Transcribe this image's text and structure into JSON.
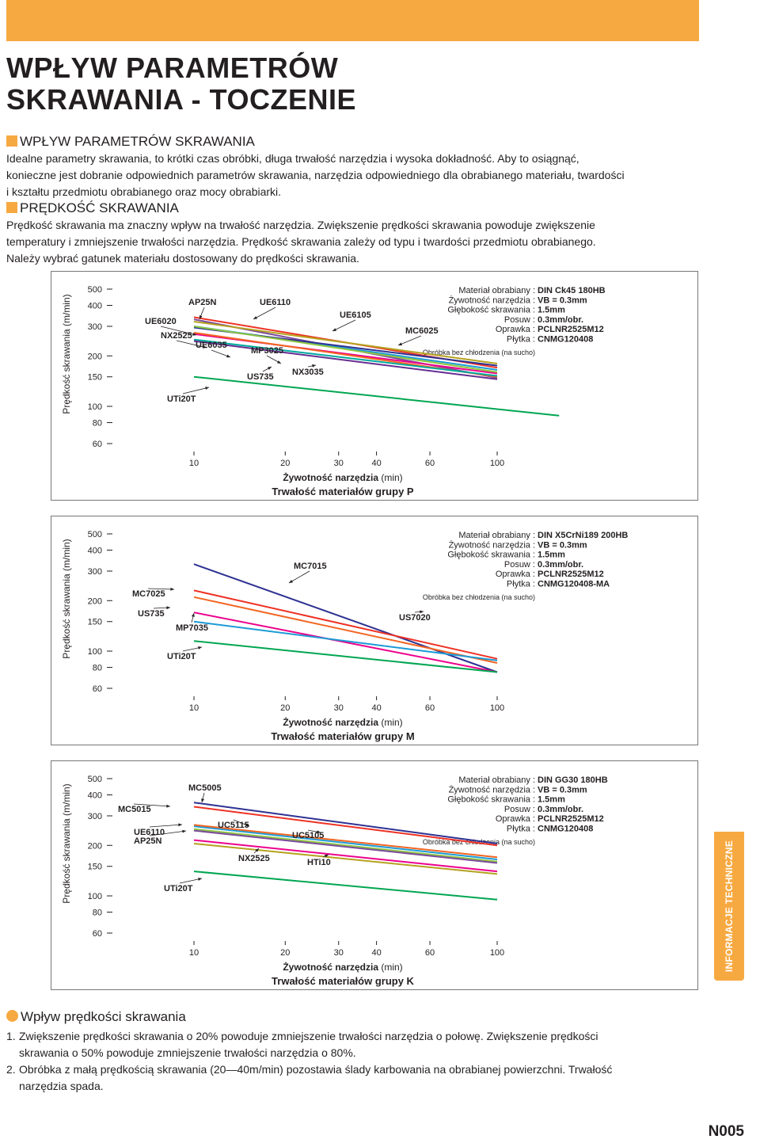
{
  "title_lines": [
    "WPŁYW PARAMETRÓW",
    "SKRAWANIA - TOCZENIE"
  ],
  "section1": {
    "heading": "WPŁYW PARAMETRÓW SKRAWANIA",
    "lines": [
      "Idealne parametry skrawania, to krótki czas obróbki, długa trwałość narzędzia i wysoka dokładność. Aby to osiągnąć,",
      "konieczne jest dobranie odpowiednich parametrów skrawania, narzędzia odpowiedniego dla obrabianego materiału, twardości",
      "i kształtu przedmiotu obrabianego oraz mocy obrabiarki."
    ]
  },
  "section2": {
    "heading": "PRĘDKOŚĆ SKRAWANIA",
    "lines": [
      "Prędkość skrawania ma znaczny wpływ na trwałość narzędzia. Zwiększenie prędkości skrawania powoduje zwiększenie",
      "temperatury i zmniejszenie trwałości narzędzia. Prędkość skrawania zależy od typu i twardości przedmiotu obrabianego.",
      "Należy wybrać gatunek materiału dostosowany do prędkości skrawania."
    ]
  },
  "chart_data": [
    {
      "type": "line",
      "title": "Trwałość materiałów grupy P",
      "xlabel_bold": "Żywotność narzędzia",
      "xlabel_unit": "(min)",
      "ylabel": "Prędkość skrawania (m/min)",
      "xscale": "log",
      "yscale": "log",
      "xticks": [
        10,
        20,
        30,
        40,
        60,
        100
      ],
      "yticks": [
        500,
        400,
        300,
        200,
        150,
        100,
        80,
        60
      ],
      "xlim": [
        10,
        100
      ],
      "ylim": [
        60,
        500
      ],
      "info": {
        "labels": [
          "Materiał obrabiany :",
          "Żywotność narzędzia :",
          "Głębokość skrawania :",
          "Posuw :",
          "Oprawka :",
          "Płytka :"
        ],
        "values": [
          "DIN Ck45   180HB",
          "VB = 0.3mm",
          "1.5mm",
          "0.3mm/obr.",
          "PCLNR2525M12",
          "CNMG120408"
        ],
        "note": "Obróbka bez chłodzenia (na sucho)"
      },
      "series": [
        {
          "name": "UE6020",
          "color": "#7b4b9c",
          "points": [
            [
              10,
              330
            ],
            [
              100,
              148
            ]
          ]
        },
        {
          "name": "AP25N",
          "color": "#ee3124",
          "points": [
            [
              10,
              340
            ],
            [
              100,
              170
            ]
          ]
        },
        {
          "name": "UE6110",
          "color": "#1c9ad6",
          "points": [
            [
              10,
              300
            ],
            [
              100,
              165
            ]
          ]
        },
        {
          "name": "UE6105",
          "color": "#2e3192",
          "points": [
            [
              10,
              295
            ],
            [
              100,
              175
            ]
          ]
        },
        {
          "name": "MC6025",
          "color": "#b5a11f",
          "points": [
            [
              10,
              320
            ],
            [
              100,
              180
            ]
          ]
        },
        {
          "name": "NX2525",
          "color": "#ec008c",
          "points": [
            [
              10,
              270
            ],
            [
              100,
              157
            ]
          ]
        },
        {
          "name": "UE6035",
          "color": "#8dc63f",
          "points": [
            [
              10,
              300
            ],
            [
              100,
              160
            ]
          ]
        },
        {
          "name": "MP3025",
          "color": "#f26522",
          "points": [
            [
              10,
              275
            ],
            [
              100,
              150
            ]
          ]
        },
        {
          "name": "US735",
          "color": "#00a99d",
          "points": [
            [
              10,
              250
            ],
            [
              100,
              152
            ]
          ]
        },
        {
          "name": "NX3035",
          "color": "#662d91",
          "points": [
            [
              10,
              245
            ],
            [
              100,
              145
            ]
          ]
        },
        {
          "name": "UTi20T",
          "color": "#00a651",
          "points": [
            [
              10,
              150
            ],
            [
              160,
              88
            ]
          ]
        }
      ]
    },
    {
      "type": "line",
      "title": "Trwałość materiałów grupy M",
      "xlabel_bold": "Żywotność narzędzia",
      "xlabel_unit": "(min)",
      "ylabel": "Prędkość skrawania (m/min)",
      "xscale": "log",
      "yscale": "log",
      "xticks": [
        10,
        20,
        30,
        40,
        60,
        100
      ],
      "yticks": [
        500,
        400,
        300,
        200,
        150,
        100,
        80,
        60
      ],
      "xlim": [
        10,
        100
      ],
      "ylim": [
        60,
        500
      ],
      "info": {
        "labels": [
          "Materiał obrabiany :",
          "Żywotność narzędzia :",
          "Głębokość skrawania :",
          "Posuw :",
          "Oprawka :",
          "Płytka :"
        ],
        "values": [
          "DIN X5CrNi189   200HB",
          "VB = 0.3mm",
          "1.5mm",
          "0.3mm/obr.",
          "PCLNR2525M12",
          "CNMG120408-MA"
        ],
        "note": "Obróbka bez chłodzenia (na sucho)"
      },
      "series": [
        {
          "name": "MC7015",
          "color": "#2e3192",
          "points": [
            [
              10,
              330
            ],
            [
              100,
              75
            ]
          ]
        },
        {
          "name": "MC7025",
          "color": "#ee3124",
          "points": [
            [
              10,
              230
            ],
            [
              100,
              90
            ]
          ]
        },
        {
          "name": "US7020",
          "color": "#f26522",
          "points": [
            [
              10,
              210
            ],
            [
              100,
              85
            ]
          ]
        },
        {
          "name": "US735",
          "color": "#ec008c",
          "points": [
            [
              10,
              170
            ],
            [
              100,
              75
            ]
          ]
        },
        {
          "name": "MP7035",
          "color": "#1c9ad6",
          "points": [
            [
              10,
              150
            ],
            [
              100,
              88
            ]
          ]
        },
        {
          "name": "UTi20T",
          "color": "#00a651",
          "points": [
            [
              10,
              115
            ],
            [
              100,
              75
            ]
          ]
        }
      ]
    },
    {
      "type": "line",
      "title": "Trwałość materiałów grupy K",
      "xlabel_bold": "Żywotność narzędzia",
      "xlabel_unit": "(min)",
      "ylabel": "Prędkość skrawania (m/min)",
      "xscale": "log",
      "yscale": "log",
      "xticks": [
        10,
        20,
        30,
        40,
        60,
        100
      ],
      "yticks": [
        500,
        400,
        300,
        200,
        150,
        100,
        80,
        60
      ],
      "xlim": [
        10,
        100
      ],
      "ylim": [
        60,
        500
      ],
      "info": {
        "labels": [
          "Materiał obrabiany :",
          "Żywotność narzędzia :",
          "Głębokość skrawania :",
          "Posuw :",
          "Oprawka :",
          "Płytka :"
        ],
        "values": [
          "DIN GG30   180HB",
          "VB = 0.3mm",
          "1.5mm",
          "0.3mm/obr.",
          "PCLNR2525M12",
          "CNMG120408"
        ],
        "note": "Obróbka bez chłodzenia (na sucho)"
      },
      "series": [
        {
          "name": "MC5005",
          "color": "#2e3192",
          "points": [
            [
              10,
              360
            ],
            [
              100,
              205
            ]
          ]
        },
        {
          "name": "MC5015",
          "color": "#ee3124",
          "points": [
            [
              10,
              340
            ],
            [
              100,
              200
            ]
          ]
        },
        {
          "name": "UE6110",
          "color": "#8dc63f",
          "points": [
            [
              10,
              250
            ],
            [
              100,
              160
            ]
          ]
        },
        {
          "name": "AP25N",
          "color": "#7b4b9c",
          "points": [
            [
              10,
              245
            ],
            [
              100,
              157
            ]
          ]
        },
        {
          "name": "UC5115",
          "color": "#1c9ad6",
          "points": [
            [
              10,
              260
            ],
            [
              100,
              165
            ]
          ]
        },
        {
          "name": "UC5105",
          "color": "#f26522",
          "points": [
            [
              10,
              265
            ],
            [
              100,
              170
            ]
          ]
        },
        {
          "name": "NX2525",
          "color": "#ec008c",
          "points": [
            [
              10,
              215
            ],
            [
              100,
              140
            ]
          ]
        },
        {
          "name": "HTi10",
          "color": "#b5a11f",
          "points": [
            [
              10,
              205
            ],
            [
              100,
              135
            ]
          ]
        },
        {
          "name": "UTi20T",
          "color": "#00a651",
          "points": [
            [
              10,
              140
            ],
            [
              100,
              95
            ]
          ]
        }
      ]
    }
  ],
  "side_tab": "INFORMACJE TECHNICZNE",
  "section3": {
    "heading": "Wpływ prędkości skrawania",
    "items": [
      {
        "num": "1.",
        "lines": [
          "Zwiększenie prędkości skrawania o 20% powoduje zmniejszenie trwałości narzędzia o połowę. Zwiększenie prędkości",
          "skrawania o 50% powoduje zmniejszenie trwałości narzędzia o 80%."
        ]
      },
      {
        "num": "2.",
        "lines": [
          "Obróbka z małą prędkością skrawania (20—40m/min) pozostawia ślady karbowania na obrabianej powierzchni. Trwałość",
          "narzędzia spada."
        ]
      }
    ]
  },
  "page_number": "N005"
}
